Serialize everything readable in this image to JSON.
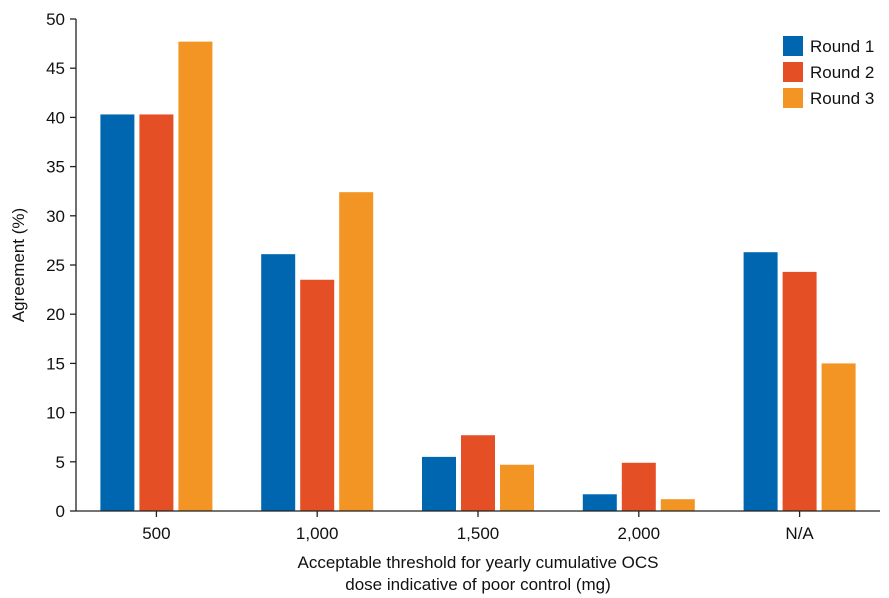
{
  "chart_data": {
    "type": "bar",
    "title": "",
    "xlabel": "Acceptable threshold for yearly cumulative OCS dose indicative of poor control (mg)",
    "xlabel_lines": [
      "Acceptable threshold for yearly cumulative OCS",
      "dose indicative of poor control (mg)"
    ],
    "ylabel": "Agreement (%)",
    "ylim": [
      0,
      50
    ],
    "yticks": [
      "0",
      "5",
      "10",
      "15",
      "20",
      "25",
      "30",
      "35",
      "40",
      "45",
      "50"
    ],
    "categories": [
      "500",
      "1,000",
      "1,500",
      "2,000",
      "N/A"
    ],
    "series": [
      {
        "name": "Round 1",
        "color": "#0066b0",
        "values": [
          40.3,
          26.1,
          5.5,
          1.7,
          26.3
        ]
      },
      {
        "name": "Round 2",
        "color": "#e44f26",
        "values": [
          40.3,
          23.5,
          7.7,
          4.9,
          24.3
        ]
      },
      {
        "name": "Round 3",
        "color": "#f39524",
        "values": [
          47.7,
          32.4,
          4.7,
          1.2,
          15.0
        ]
      }
    ],
    "legend_position": "top-right",
    "grid": false
  }
}
